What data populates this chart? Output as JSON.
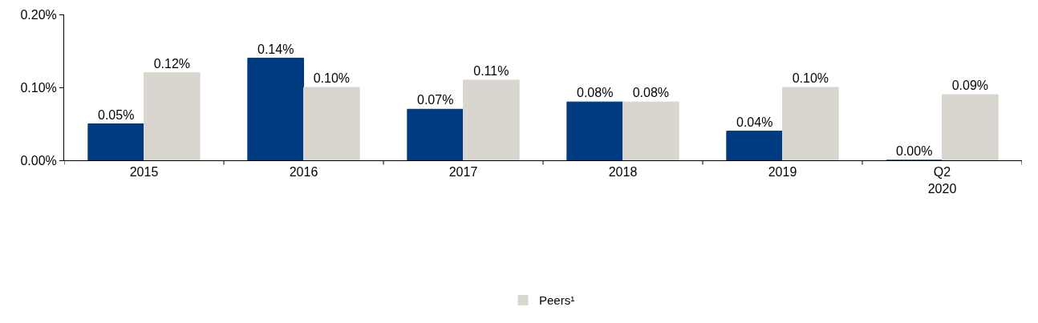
{
  "chart_data": {
    "type": "bar",
    "categories": [
      "2015",
      "2016",
      "2017",
      "2018",
      "2019",
      "Q2\n2020"
    ],
    "series": [
      {
        "color": "#003a80",
        "values": [
          0.05,
          0.14,
          0.07,
          0.08,
          0.04,
          0.0
        ],
        "value_labels": [
          "0.05%",
          "0.14%",
          "0.07%",
          "0.08%",
          "0.04%",
          "0.00%"
        ]
      },
      {
        "name": "Peers¹",
        "color": "#d9d6cf",
        "values": [
          0.12,
          0.1,
          0.11,
          0.08,
          0.1,
          0.09
        ],
        "value_labels": [
          "0.12%",
          "0.10%",
          "0.11%",
          "0.08%",
          "0.10%",
          "0.09%"
        ]
      }
    ],
    "ylim": [
      0,
      0.2
    ],
    "yticks": [
      {
        "value": 0,
        "label": "0.00%"
      },
      {
        "value": 0.1,
        "label": "0.10%"
      },
      {
        "value": 0.2,
        "label": "0.20%"
      }
    ],
    "grid": false,
    "legend": "bottom"
  }
}
